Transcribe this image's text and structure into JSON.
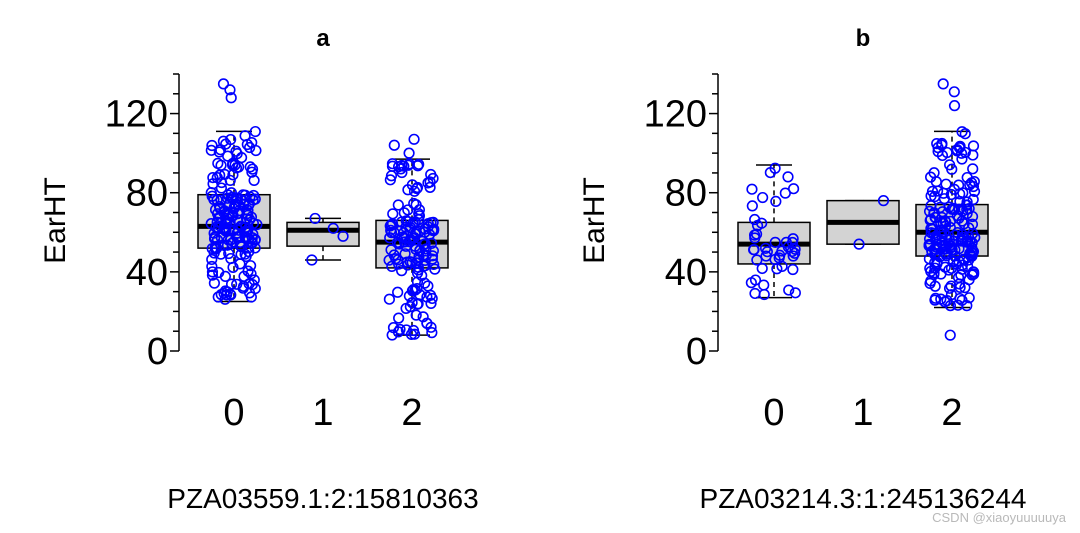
{
  "watermark": "CSDN @xiaoyuuuuuya",
  "chart_data": [
    {
      "type": "box",
      "title": "a",
      "xlabel": "PZA03559.1:2:15810363",
      "ylabel": "EarHT",
      "categories": [
        "0",
        "1",
        "2"
      ],
      "yticks": [
        0,
        40,
        80,
        120
      ],
      "ylim": [
        0,
        140
      ],
      "grid": false,
      "point_color": "#0000ff",
      "box_fill": "#d3d3d3",
      "boxes": [
        {
          "category": "0",
          "whisker_low": 25,
          "q1": 52,
          "median": 63,
          "q3": 79,
          "whisker_high": 111,
          "n_points": 190,
          "outliers": [
            128,
            132,
            135
          ]
        },
        {
          "category": "1",
          "whisker_low": 46,
          "q1": 53,
          "median": 61,
          "q3": 65,
          "whisker_high": 67,
          "n_points": 4,
          "outliers": [],
          "points": [
            46,
            58,
            62,
            67
          ]
        },
        {
          "category": "2",
          "whisker_low": 8,
          "q1": 42,
          "median": 55,
          "q3": 66,
          "whisker_high": 97,
          "n_points": 150,
          "outliers": [
            100,
            104,
            107
          ]
        }
      ]
    },
    {
      "type": "box",
      "title": "b",
      "xlabel": "PZA03214.3:1:245136244",
      "ylabel": "EarHT",
      "categories": [
        "0",
        "1",
        "2"
      ],
      "yticks": [
        0,
        40,
        80,
        120
      ],
      "ylim": [
        0,
        140
      ],
      "grid": false,
      "point_color": "#0000ff",
      "box_fill": "#d3d3d3",
      "boxes": [
        {
          "category": "0",
          "whisker_low": 27,
          "q1": 44,
          "median": 54,
          "q3": 65,
          "whisker_high": 94,
          "n_points": 45,
          "outliers": []
        },
        {
          "category": "1",
          "whisker_low": 54,
          "q1": 54,
          "median": 65,
          "q3": 76,
          "whisker_high": 76,
          "n_points": 2,
          "outliers": [],
          "points": [
            54,
            76
          ]
        },
        {
          "category": "2",
          "whisker_low": 22,
          "q1": 48,
          "median": 60,
          "q3": 74,
          "whisker_high": 111,
          "n_points": 200,
          "outliers": [
            8,
            124,
            131,
            135
          ]
        }
      ]
    }
  ]
}
